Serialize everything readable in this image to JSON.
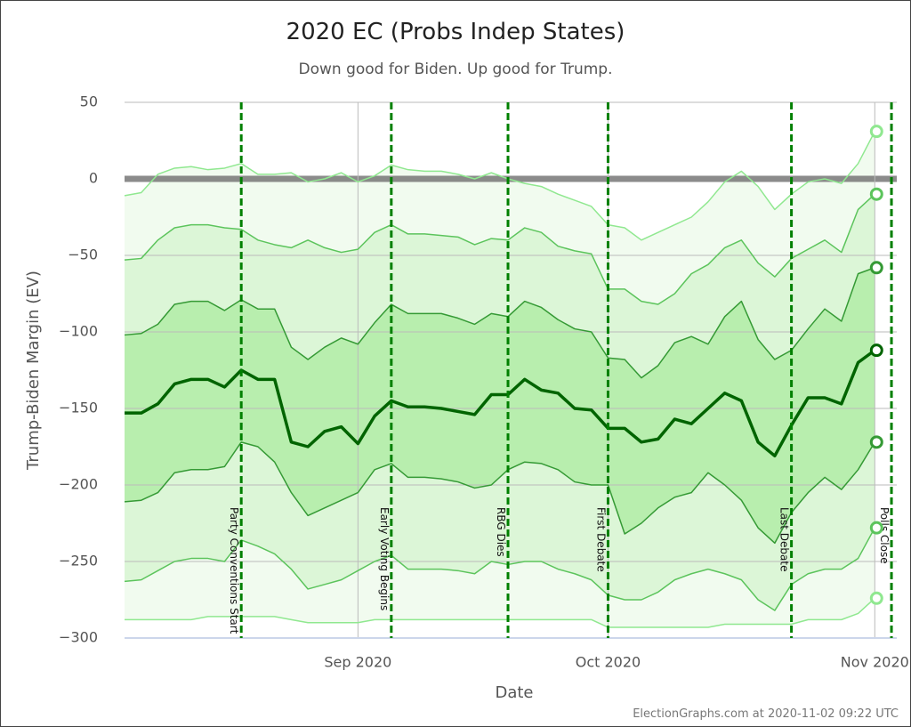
{
  "chart_data": {
    "type": "line",
    "title": "2020 EC (Probs Indep States)",
    "subtitle": "Down good for Biden. Up good for Trump.",
    "y_label": "Trump-Biden Margin (EV)",
    "x_label": "Date",
    "credit": "ElectionGraphs.com at 2020-11-02 09:22 UTC",
    "ylim": [
      -300,
      50
    ],
    "yticks": [
      50,
      0,
      {
        "value": -50,
        "label": "−50"
      },
      {
        "value": -100,
        "label": "−100"
      },
      {
        "value": -150,
        "label": "−150"
      },
      {
        "value": -200,
        "label": "−200"
      },
      {
        "value": -250,
        "label": "−250"
      },
      {
        "value": -300,
        "label": "−300"
      }
    ],
    "grid": true,
    "categories": [
      null,
      null,
      null,
      null,
      null,
      null,
      null,
      null,
      null,
      null,
      null,
      null,
      null,
      null,
      "Sep 2020",
      null,
      null,
      null,
      null,
      null,
      null,
      null,
      null,
      null,
      null,
      null,
      null,
      null,
      null,
      "Oct 2020",
      null,
      null,
      null,
      null,
      null,
      null,
      null,
      null,
      null,
      null,
      null,
      null,
      null,
      null,
      null,
      "Nov 2020",
      null
    ],
    "events": [
      null,
      null,
      null,
      null,
      null,
      null,
      null,
      "Party Conventions Start",
      null,
      null,
      null,
      null,
      null,
      null,
      null,
      null,
      "Early Voting Begins",
      null,
      null,
      null,
      null,
      null,
      null,
      "RBG Dies",
      null,
      null,
      null,
      null,
      null,
      "First Debate",
      null,
      null,
      null,
      null,
      null,
      null,
      null,
      null,
      null,
      null,
      "Last Debate",
      null,
      null,
      null,
      null,
      null,
      "Polls Close"
    ],
    "event_color": "#008000",
    "band_colors": [
      "#f1fbef",
      "#dcf6d7",
      "#b8eeae"
    ],
    "series": [
      {
        "color": "#90e890",
        "values": [
          -11,
          -9,
          3,
          7,
          8,
          6,
          7,
          10,
          3,
          3,
          4,
          -2,
          0,
          4,
          -2,
          2,
          9,
          6,
          5,
          5,
          3,
          0,
          4,
          0,
          -3,
          -5,
          -10,
          -14,
          -18,
          -30,
          -32,
          -40,
          -35,
          -30,
          -25,
          -15,
          -2,
          5,
          -5,
          -20,
          -10,
          -2,
          0,
          -3,
          10,
          31,
          null
        ]
      },
      {
        "color": "#5cc45c",
        "values": [
          -53,
          -52,
          -40,
          -32,
          -30,
          -30,
          -32,
          -33,
          -40,
          -43,
          -45,
          -40,
          -45,
          -48,
          -46,
          -35,
          -30,
          -36,
          -36,
          -37,
          -38,
          -43,
          -39,
          -40,
          -32,
          -35,
          -44,
          -47,
          -49,
          -72,
          -72,
          -80,
          -82,
          -75,
          -62,
          -56,
          -45,
          -40,
          -55,
          -64,
          -52,
          -46,
          -40,
          -48,
          -20,
          -10,
          null
        ]
      },
      {
        "color": "#359a35",
        "values": [
          -102,
          -101,
          -95,
          -82,
          -80,
          -80,
          -86,
          -79,
          -85,
          -85,
          -110,
          -118,
          -110,
          -104,
          -108,
          -94,
          -82,
          -88,
          -88,
          -88,
          -91,
          -95,
          -88,
          -90,
          -80,
          -84,
          -92,
          -98,
          -100,
          -117,
          -118,
          -130,
          -122,
          -107,
          -103,
          -108,
          -90,
          -80,
          -105,
          -118,
          -112,
          -98,
          -85,
          -93,
          -62,
          -58,
          null
        ]
      },
      {
        "color": "#006400",
        "values": [
          -153,
          -153,
          -147,
          -134,
          -131,
          -131,
          -136,
          -125,
          -131,
          -131,
          -172,
          -175,
          -165,
          -162,
          -173,
          -155,
          -145,
          -149,
          -149,
          -150,
          -152,
          -154,
          -141,
          -141,
          -131,
          -138,
          -140,
          -150,
          -151,
          -163,
          -163,
          -172,
          -170,
          -157,
          -160,
          -150,
          -140,
          -145,
          -172,
          -181,
          -161,
          -143,
          -143,
          -147,
          -120,
          -112,
          null
        ]
      },
      {
        "color": "#359a35",
        "values": [
          -211,
          -210,
          -205,
          -192,
          -190,
          -190,
          -188,
          -172,
          -175,
          -185,
          -205,
          -220,
          -215,
          -210,
          -205,
          -190,
          -186,
          -195,
          -195,
          -196,
          -198,
          -202,
          -200,
          -190,
          -185,
          -186,
          -190,
          -198,
          -200,
          -200,
          -232,
          -225,
          -215,
          -208,
          -205,
          -192,
          -200,
          -210,
          -228,
          -238,
          -218,
          -205,
          -195,
          -203,
          -190,
          -172,
          null
        ]
      },
      {
        "color": "#5cc45c",
        "values": [
          -263,
          -262,
          -256,
          -250,
          -248,
          -248,
          -250,
          -236,
          -240,
          -245,
          -255,
          -268,
          -265,
          -262,
          -256,
          -250,
          -246,
          -255,
          -255,
          -255,
          -256,
          -258,
          -250,
          -252,
          -250,
          -250,
          -255,
          -258,
          -262,
          -272,
          -275,
          -275,
          -270,
          -262,
          -258,
          -255,
          -258,
          -262,
          -275,
          -282,
          -265,
          -258,
          -255,
          -255,
          -248,
          -228,
          null
        ]
      },
      {
        "color": "#90e890",
        "values": [
          -288,
          -288,
          -288,
          -288,
          -288,
          -286,
          -286,
          -286,
          -286,
          -286,
          -288,
          -290,
          -290,
          -290,
          -290,
          -288,
          -288,
          -288,
          -288,
          -288,
          -288,
          -288,
          -288,
          -288,
          -288,
          -288,
          -288,
          -288,
          -288,
          -293,
          -293,
          -293,
          -293,
          -293,
          -293,
          -293,
          -291,
          -291,
          -291,
          -291,
          -291,
          -288,
          -288,
          -288,
          -284,
          -274,
          null
        ]
      }
    ]
  }
}
